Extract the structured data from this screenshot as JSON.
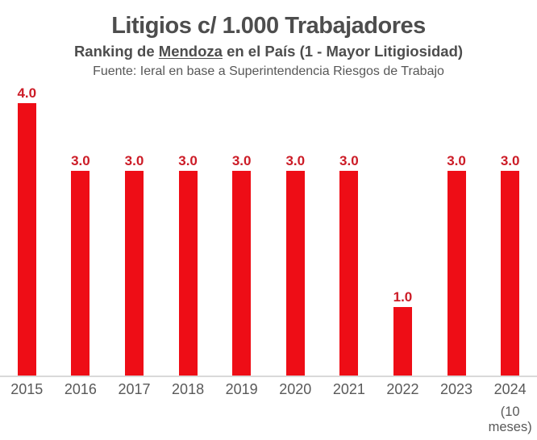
{
  "header": {
    "title": "Litigios c/ 1.000 Trabajadores",
    "subtitle_prefix": "Ranking de ",
    "subtitle_underlined": "Mendoza",
    "subtitle_suffix": " en el País (1 - Mayor Litigiosidad)",
    "source": "Fuente: Ieral en base a Superintendencia Riesgos de Trabajo"
  },
  "colors": {
    "background": "#FFFFFF",
    "bar": "#EE0D16",
    "value_label": "#CC1B26",
    "title_text": "#4D4D4D",
    "source_text": "#575757",
    "axis_text": "#595959",
    "axis_line": "#D9D9D9"
  },
  "chart_data": {
    "type": "bar",
    "title": "Litigios c/ 1.000 Trabajadores",
    "subtitle": "Ranking de Mendoza en el País (1 - Mayor Litigiosidad)",
    "source": "Fuente: Ieral en base a Superintendencia Riesgos de Trabajo",
    "categories": [
      "2015",
      "2016",
      "2017",
      "2018",
      "2019",
      "2020",
      "2021",
      "2022",
      "2023",
      "2024"
    ],
    "category_notes": [
      "",
      "",
      "",
      "",
      "",
      "",
      "",
      "",
      "",
      "(10 meses)"
    ],
    "values": [
      4.0,
      3.0,
      3.0,
      3.0,
      3.0,
      3.0,
      3.0,
      1.0,
      3.0,
      3.0
    ],
    "value_labels": [
      "4.0",
      "3.0",
      "3.0",
      "3.0",
      "3.0",
      "3.0",
      "3.0",
      "1.0",
      "3.0",
      "3.0"
    ],
    "xlabel": "",
    "ylabel": "",
    "ylim": [
      0,
      4.4
    ],
    "grid": false,
    "legend": false,
    "data_labels_position": "above bars",
    "orientation": "vertical"
  }
}
